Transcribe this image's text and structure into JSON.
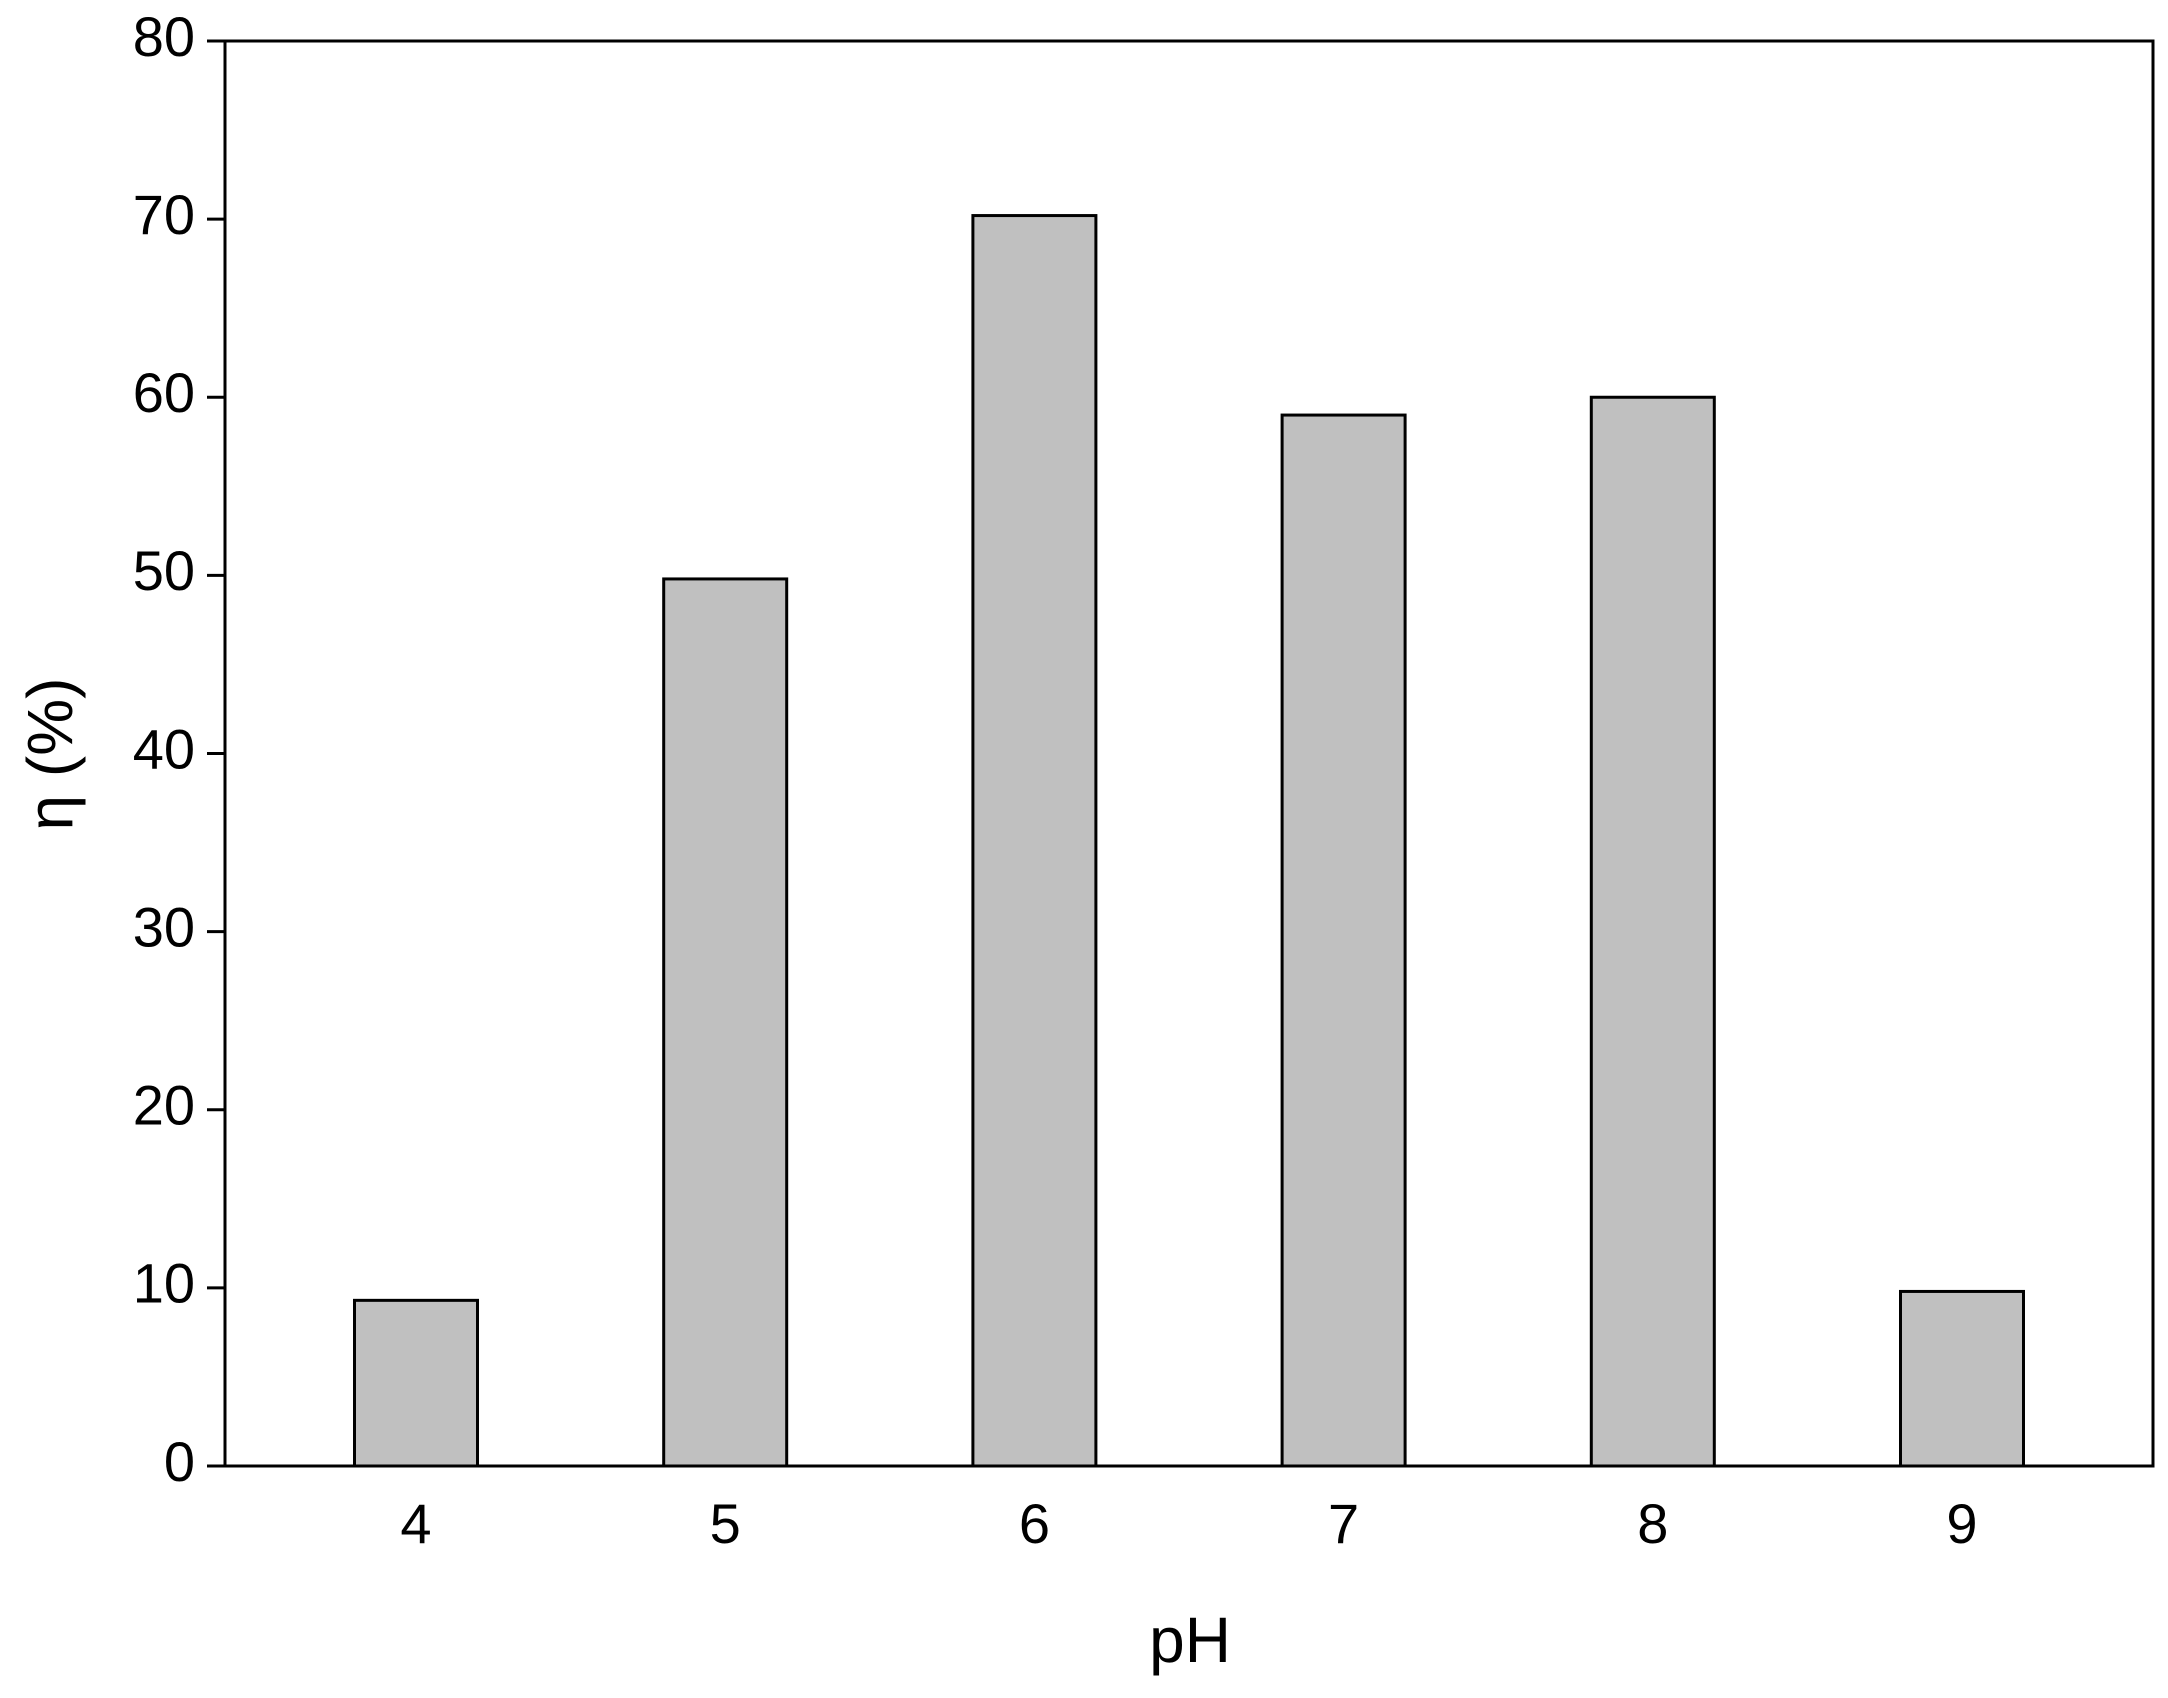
{
  "chart_data": {
    "type": "bar",
    "x_label": "pH",
    "y_label": "η (%)",
    "categories": [
      "4",
      "5",
      "6",
      "7",
      "8",
      "9"
    ],
    "values": [
      9.3,
      49.8,
      70.2,
      59.0,
      60.0,
      9.8
    ],
    "color": "#c0c0c0",
    "ylim": [
      0,
      80
    ],
    "yticks": [
      0,
      10,
      20,
      30,
      40,
      50,
      60,
      70,
      80
    ],
    "grid": false
  }
}
